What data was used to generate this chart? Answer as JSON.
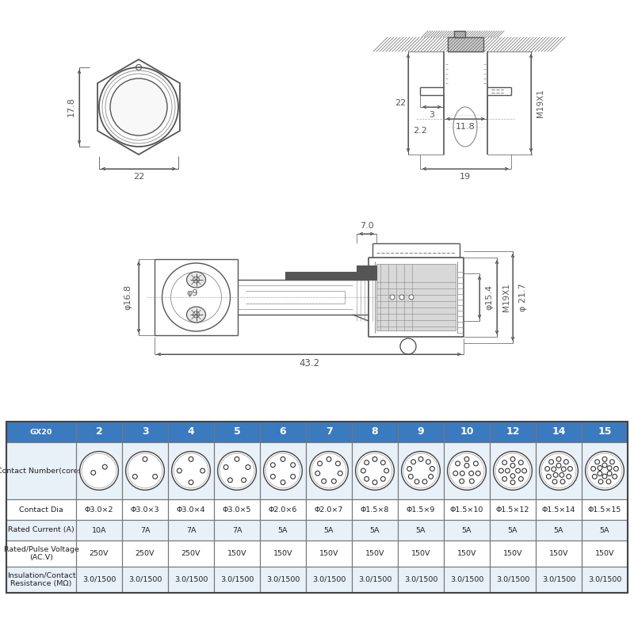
{
  "bg_color": "#ffffff",
  "line_color": "#555555",
  "dim_color": "#555555",
  "table_header_bg": "#3a7abf",
  "table_header_text": "#ffffff",
  "pin_numbers": [
    "2",
    "3",
    "4",
    "5",
    "6",
    "7",
    "8",
    "9",
    "10",
    "12",
    "14",
    "15"
  ],
  "contact_dia": [
    "Φ3.0×2",
    "Φ3.0×3",
    "Φ3.0×4",
    "Φ3.0×5",
    "Φ2.0×6",
    "Φ2.0×7",
    "Φ1.5×8",
    "Φ1.5×9",
    "Φ1.5×10",
    "Φ1.5×12",
    "Φ1.5×14",
    "Φ1.5×15"
  ],
  "rated_current": [
    "10A",
    "7A",
    "7A",
    "7A",
    "5A",
    "5A",
    "5A",
    "5A",
    "5A",
    "5A",
    "5A",
    "5A"
  ],
  "rated_voltage": [
    "250V",
    "250V",
    "250V",
    "150V",
    "150V",
    "150V",
    "150V",
    "150V",
    "150V",
    "150V",
    "150V",
    "150V"
  ],
  "insulation": [
    "3.0/1500",
    "3.0/1500",
    "3.0/1500",
    "3.0/1500",
    "3.0/1500",
    "3.0/1500",
    "3.0/1500",
    "3.0/1500",
    "3.0/1500",
    "3.0/1500",
    "3.0/1500",
    "3.0/1500"
  ],
  "dim_17_8": "17.8",
  "dim_22_w": "22",
  "dim_22_h": "22",
  "dim_3": "3",
  "dim_11_8": "11.8",
  "dim_2_2": "2.2",
  "dim_19": "19",
  "dim_M19X1": "M19X1",
  "dim_7_0": "7.0",
  "dim_43_2": "43.2",
  "dim_16_8": "φ16.8",
  "dim_9": "φ9",
  "dim_15_4": "φ15.4",
  "dim_21_7": "φ 21.7",
  "dim_M19X1_side": "M19X1"
}
